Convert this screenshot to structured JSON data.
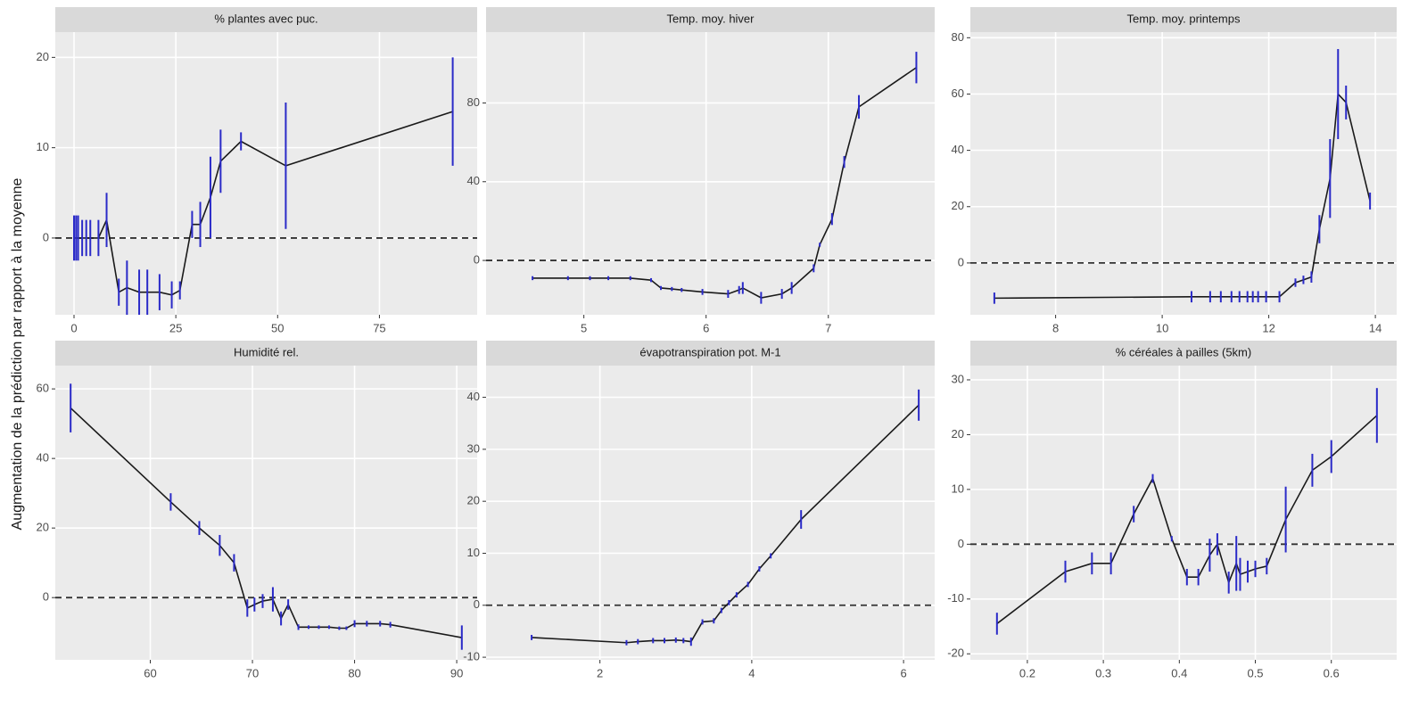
{
  "ylabel": "Augmentation de la prédiction par rapport à la moyenne",
  "chart_data": [
    {
      "type": "line",
      "title": "% plantes avec puc.",
      "error_color": "#2a2ac8",
      "color": "#1a1a1a",
      "hline": 0,
      "x": [
        0,
        0.5,
        1,
        2,
        3,
        4,
        6,
        8,
        11,
        13,
        16,
        18,
        21,
        24,
        26,
        29,
        31,
        33.5,
        36,
        41,
        52,
        93
      ],
      "values": [
        0,
        0,
        0,
        0,
        0,
        0,
        0,
        2,
        -6,
        -5.5,
        -6,
        -6,
        -6,
        -6.3,
        -5.8,
        1.5,
        1.5,
        4.5,
        8.5,
        10.7,
        8,
        14
      ],
      "errors": [
        2.5,
        2.5,
        2.5,
        2,
        2,
        2,
        2,
        3,
        1.5,
        3,
        2.5,
        2.5,
        2,
        1.5,
        1,
        1.5,
        2.5,
        4.5,
        3.5,
        1,
        7,
        6
      ],
      "xlim": [
        -4.6,
        99
      ],
      "ylim": [
        -8.5,
        22.8
      ],
      "xticks": [
        0,
        25,
        50,
        75
      ],
      "yticks": [
        0,
        10,
        20
      ],
      "grid": true
    },
    {
      "type": "line",
      "title": "Temp. moy. hiver",
      "error_color": "#2a2ac8",
      "color": "#1a1a1a",
      "hline": 0,
      "x": [
        4.58,
        4.87,
        5.05,
        5.2,
        5.38,
        5.55,
        5.63,
        5.72,
        5.8,
        5.97,
        6.18,
        6.27,
        6.3,
        6.45,
        6.62,
        6.7,
        6.88,
        6.93,
        7.03,
        7.13,
        7.25,
        7.72
      ],
      "values": [
        -9,
        -9,
        -9,
        -9,
        -9,
        -10,
        -14,
        -14.5,
        -15,
        -16,
        -17,
        -15,
        -14,
        -19,
        -17,
        -14,
        -4,
        8,
        21,
        50,
        78,
        98
      ],
      "errors": [
        1,
        1,
        1,
        1,
        1,
        1,
        1,
        1,
        1,
        1.5,
        2,
        2,
        3,
        3,
        2.5,
        3,
        2,
        1,
        3,
        3,
        6,
        8
      ],
      "xlim": [
        4.2,
        7.87
      ],
      "ylim": [
        -27.6,
        116
      ],
      "xticks": [
        5,
        6,
        7
      ],
      "yticks": [
        0,
        40,
        80
      ],
      "grid": true
    },
    {
      "type": "line",
      "title": "Temp. moy. printemps",
      "error_color": "#2a2ac8",
      "color": "#1a1a1a",
      "hline": 0,
      "x": [
        6.85,
        10.55,
        10.9,
        11.1,
        11.3,
        11.45,
        11.6,
        11.7,
        11.8,
        11.95,
        12.2,
        12.5,
        12.65,
        12.8,
        12.95,
        13.15,
        13.3,
        13.45,
        13.9
      ],
      "values": [
        -12.5,
        -12,
        -12,
        -12,
        -12,
        -12,
        -12,
        -12,
        -12,
        -12,
        -12,
        -7,
        -6,
        -5,
        12,
        30,
        60,
        57,
        22
      ],
      "errors": [
        2,
        2,
        2,
        2,
        2,
        2,
        2,
        2,
        2,
        2,
        2,
        1.5,
        1.5,
        2,
        5,
        14,
        16,
        6,
        3
      ],
      "xlim": [
        6.4,
        14.4
      ],
      "ylim": [
        -18.4,
        82
      ],
      "xticks": [
        8,
        10,
        12,
        14
      ],
      "yticks": [
        0,
        20,
        40,
        60,
        80
      ],
      "grid": true
    },
    {
      "type": "line",
      "title": "Humidité rel.",
      "error_color": "#2a2ac8",
      "color": "#1a1a1a",
      "hline": 0,
      "x": [
        52.2,
        62,
        64.8,
        66.8,
        68.2,
        69.5,
        70.2,
        71,
        72,
        72.8,
        73.5,
        74.5,
        75.5,
        76.5,
        77.5,
        78.5,
        79.2,
        80,
        81.2,
        82.5,
        83.5,
        90.5
      ],
      "values": [
        54.5,
        27.5,
        20,
        15,
        10,
        -3,
        -2,
        -1,
        -0.5,
        -6,
        -2,
        -8.5,
        -8.5,
        -8.5,
        -8.5,
        -8.8,
        -8.8,
        -7.5,
        -7.5,
        -7.5,
        -7.8,
        -11.5
      ],
      "errors": [
        7,
        2.5,
        2,
        3,
        2.5,
        2.5,
        2,
        2,
        3.5,
        2,
        1.5,
        0.8,
        0.5,
        0.5,
        0.5,
        0.5,
        0.5,
        1,
        0.8,
        0.8,
        0.8,
        3.5
      ],
      "xlim": [
        50.7,
        92
      ],
      "ylim": [
        -17.9,
        66.7
      ],
      "xticks": [
        60,
        70,
        80,
        90
      ],
      "yticks": [
        0,
        20,
        40,
        60
      ],
      "grid": true
    },
    {
      "type": "line",
      "title": "évapotranspiration pot. M-1",
      "error_color": "#2a2ac8",
      "color": "#1a1a1a",
      "hline": 0,
      "x": [
        1.1,
        2.35,
        2.5,
        2.7,
        2.85,
        3.0,
        3.1,
        3.2,
        3.35,
        3.5,
        3.6,
        3.7,
        3.8,
        3.95,
        4.1,
        4.25,
        4.65,
        6.2
      ],
      "values": [
        -6.2,
        -7.2,
        -7,
        -6.8,
        -6.8,
        -6.7,
        -6.8,
        -7,
        -3.2,
        -3,
        -1,
        0.5,
        2,
        4,
        7,
        9.5,
        16.5,
        38.5
      ],
      "errors": [
        0.5,
        0.5,
        0.5,
        0.5,
        0.5,
        0.5,
        0.5,
        0.8,
        0.5,
        0.5,
        0.5,
        0.5,
        0.5,
        0.5,
        0.5,
        0.5,
        1.8,
        3
      ],
      "xlim": [
        0.5,
        6.41
      ],
      "ylim": [
        -10.5,
        46.1
      ],
      "xticks": [
        2,
        4,
        6
      ],
      "yticks": [
        -10,
        0,
        10,
        20,
        30,
        40
      ],
      "grid": true
    },
    {
      "type": "line",
      "title": "% céréales à pailles (5km)",
      "error_color": "#2a2ac8",
      "color": "#1a1a1a",
      "hline": 0,
      "x": [
        0.16,
        0.25,
        0.285,
        0.31,
        0.34,
        0.365,
        0.39,
        0.41,
        0.425,
        0.44,
        0.45,
        0.465,
        0.475,
        0.48,
        0.49,
        0.5,
        0.515,
        0.54,
        0.575,
        0.6,
        0.66
      ],
      "values": [
        -14.5,
        -5,
        -3.5,
        -3.5,
        5.5,
        12,
        1,
        -6,
        -6,
        -2,
        0,
        -7,
        -3.5,
        -5.5,
        -5,
        -4.5,
        -4,
        4.5,
        13.5,
        16,
        23.5
      ],
      "errors": [
        2,
        2,
        2,
        2,
        1.5,
        0.8,
        0.5,
        1.5,
        1.5,
        3,
        2,
        2,
        5,
        3,
        2,
        1.5,
        1.5,
        6,
        3,
        3,
        5
      ],
      "xlim": [
        0.125,
        0.686
      ],
      "ylim": [
        -21.1,
        32.6
      ],
      "xticks": [
        0.2,
        0.3,
        0.4,
        0.5,
        0.6
      ],
      "yticks": [
        -20,
        -10,
        0,
        10,
        20,
        30
      ],
      "grid": true
    }
  ]
}
